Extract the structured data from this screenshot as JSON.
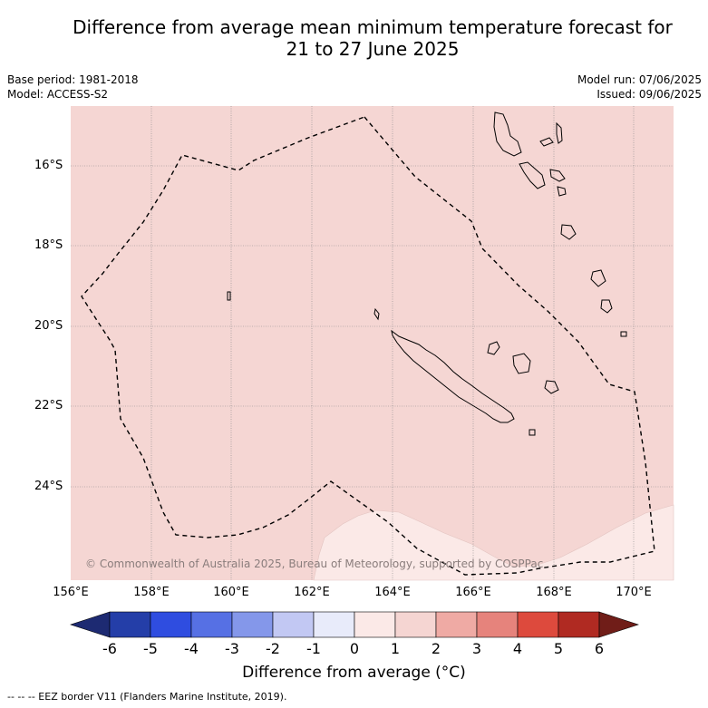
{
  "title_line1": "Difference from average mean minimum temperature forecast for",
  "title_line2": "21 to 27 June 2025",
  "base_period": "Base period: 1981-2018",
  "model": "Model: ACCESS-S2",
  "model_run": "Model run: 07/06/2025",
  "issued": "Issued: 09/06/2025",
  "copyright": "© Commonwealth of Australia 2025, Bureau of Meteorology, supported by COSPPac",
  "lat_labels": [
    "16°S",
    "18°S",
    "20°S",
    "22°S",
    "24°S"
  ],
  "lon_labels": [
    "156°E",
    "158°E",
    "160°E",
    "162°E",
    "164°E",
    "166°E",
    "168°E",
    "170°E"
  ],
  "colorbar": {
    "ticks": [
      "-6",
      "-5",
      "-4",
      "-3",
      "-2",
      "-1",
      "0",
      "1",
      "2",
      "3",
      "4",
      "5",
      "6"
    ],
    "colors": [
      "#243ea8",
      "#2f4de0",
      "#5670e4",
      "#8497ea",
      "#c2c8f3",
      "#e8ebfa",
      "#fbe9e7",
      "#f5d5d2",
      "#efaaa4",
      "#e6837c",
      "#dd4a3d",
      "#b02a22"
    ],
    "under_color": "#1d2a72",
    "over_color": "#701d18",
    "label": "Difference from average (°C)"
  },
  "map_colors": {
    "main": "#f5d6d3",
    "light": "#fbe9e7"
  },
  "footer": "--  --  -- EEZ border V11 (Flanders Marine Institute, 2019)."
}
